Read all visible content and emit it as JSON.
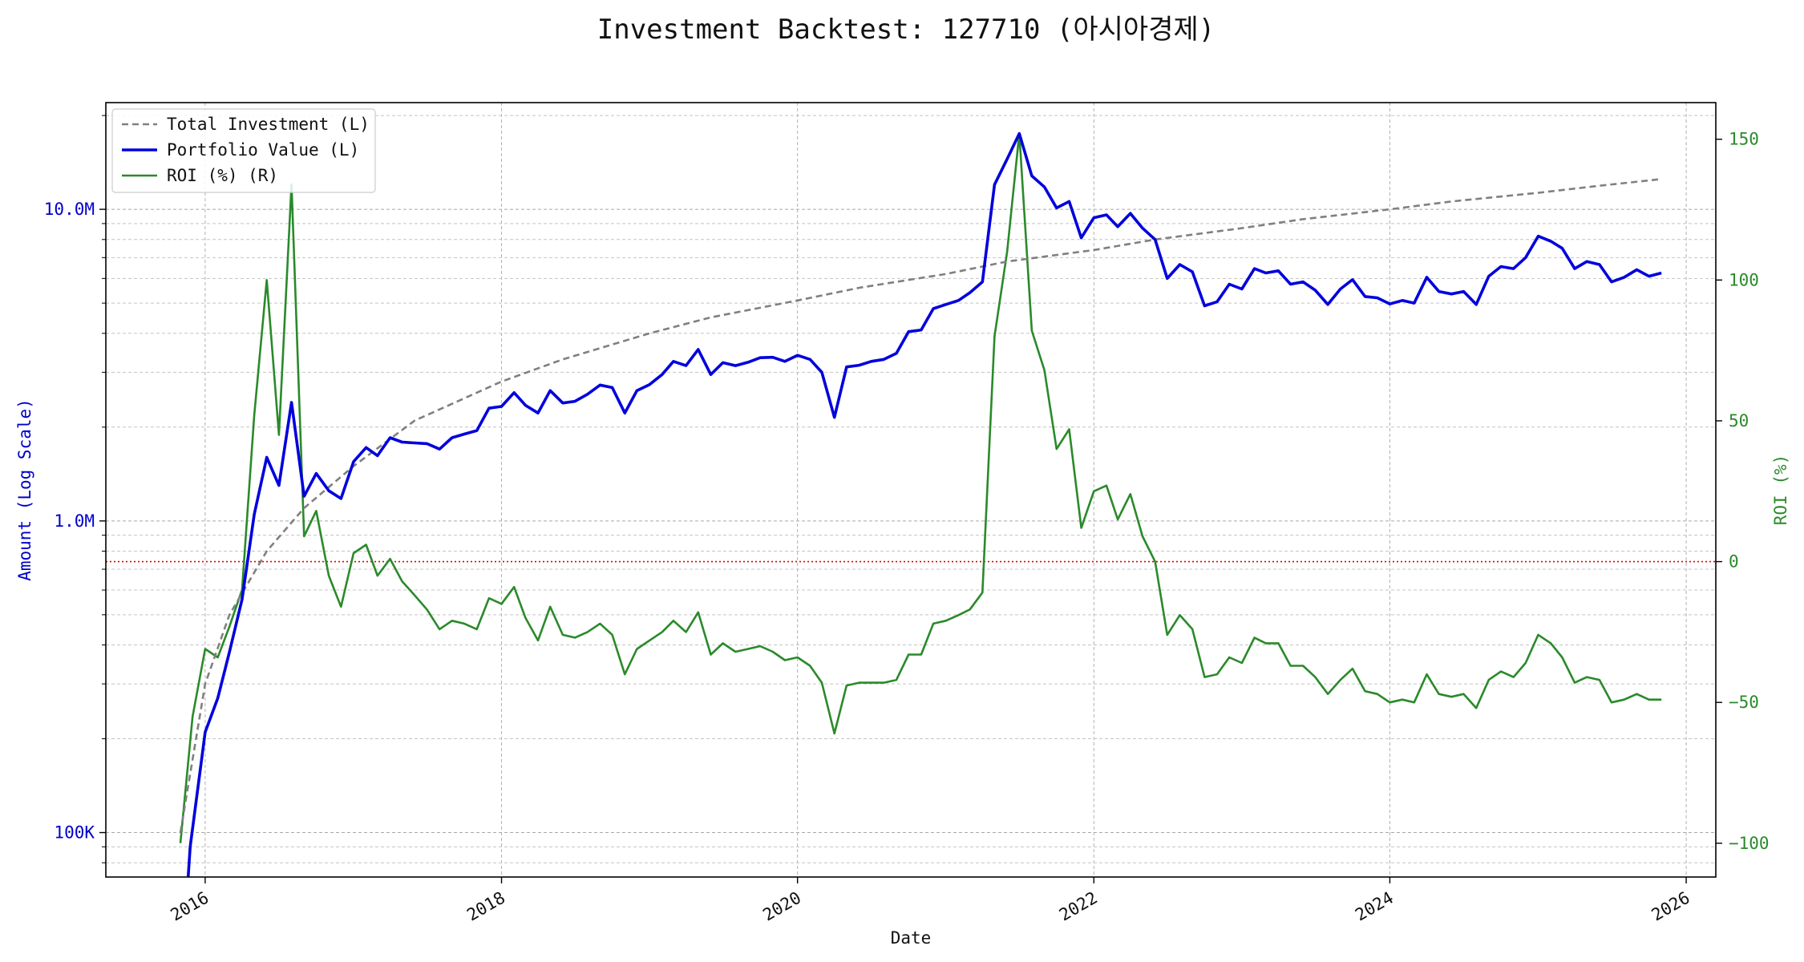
{
  "chart_data": {
    "type": "line",
    "title": "Investment Backtest: 127710 (아시아경제)",
    "xlabel": "Date",
    "ylabel_left": "Amount (Log Scale)",
    "ylabel_right": "ROI (%)",
    "yscale_left": "log",
    "ylim_left": [
      72000,
      22000000
    ],
    "ylim_right": [
      -112,
      163
    ],
    "xlim": [
      "2015-05-01",
      "2026-03-15"
    ],
    "x_ticks": [
      {
        "date": "2016-01-01",
        "label": "2016"
      },
      {
        "date": "2018-01-01",
        "label": "2018"
      },
      {
        "date": "2020-01-01",
        "label": "2020"
      },
      {
        "date": "2022-01-01",
        "label": "2022"
      },
      {
        "date": "2024-01-01",
        "label": "2024"
      },
      {
        "date": "2026-01-01",
        "label": "2026"
      }
    ],
    "y_left_ticks": [
      {
        "value": 100000,
        "label": "100K"
      },
      {
        "value": 1000000,
        "label": "1.0M"
      },
      {
        "value": 10000000,
        "label": "10.0M"
      }
    ],
    "y_right_ticks": [
      {
        "value": -100,
        "label": "−100"
      },
      {
        "value": -50,
        "label": "−50"
      },
      {
        "value": 0,
        "label": "0"
      },
      {
        "value": 50,
        "label": "50"
      },
      {
        "value": 100,
        "label": "100"
      },
      {
        "value": 150,
        "label": "150"
      }
    ],
    "reference_line_right": 0,
    "grid": true,
    "legend_position": "top-left",
    "colors": {
      "total_investment": "#808080",
      "portfolio_value": "#0000dd",
      "roi": "#2a8a2a",
      "zero_line": "#dd0000"
    },
    "series": [
      {
        "name": "Total Investment (L)",
        "axis": "left",
        "style": "dashed",
        "x": [
          "2015-11-01",
          "2016-01-01",
          "2016-03-01",
          "2016-06-01",
          "2016-09-01",
          "2017-01-01",
          "2017-06-01",
          "2018-01-01",
          "2018-06-01",
          "2019-01-01",
          "2019-06-01",
          "2020-01-01",
          "2020-06-01",
          "2021-01-01",
          "2021-06-01",
          "2022-01-01",
          "2022-06-01",
          "2023-01-01",
          "2023-06-01",
          "2024-01-01",
          "2024-06-01",
          "2025-01-01",
          "2025-06-01",
          "2025-11-01"
        ],
        "values": [
          100000,
          300000,
          500000,
          800000,
          1100000,
          1500000,
          2100000,
          2800000,
          3300000,
          4000000,
          4500000,
          5100000,
          5600000,
          6200000,
          6800000,
          7400000,
          8000000,
          8700000,
          9300000,
          10000000,
          10600000,
          11300000,
          11900000,
          12500000
        ]
      },
      {
        "name": "Portfolio Value (L)",
        "axis": "left",
        "style": "solid",
        "x": [
          "2015-11-20",
          "2015-11-25",
          "2016-01-01",
          "2016-02-01",
          "2016-03-01",
          "2016-04-01",
          "2016-05-01",
          "2016-06-01",
          "2016-07-01",
          "2016-08-01",
          "2016-09-01",
          "2016-10-01",
          "2016-11-01",
          "2016-12-01",
          "2017-01-01",
          "2017-02-01",
          "2017-03-01",
          "2017-04-01",
          "2017-05-01",
          "2017-06-01",
          "2017-07-01",
          "2017-08-01",
          "2017-09-01",
          "2017-10-01",
          "2017-11-01",
          "2017-12-01",
          "2018-01-01",
          "2018-02-01",
          "2018-03-01",
          "2018-04-01",
          "2018-05-01",
          "2018-06-01",
          "2018-07-01",
          "2018-08-01",
          "2018-09-01",
          "2018-10-01",
          "2018-11-01",
          "2018-12-01",
          "2019-01-01",
          "2019-02-01",
          "2019-03-01",
          "2019-04-01",
          "2019-05-01",
          "2019-06-01",
          "2019-07-01",
          "2019-08-01",
          "2019-09-01",
          "2019-10-01",
          "2019-11-01",
          "2019-12-01",
          "2020-01-01",
          "2020-02-01",
          "2020-03-01",
          "2020-04-01",
          "2020-05-01",
          "2020-06-01",
          "2020-07-01",
          "2020-08-01",
          "2020-09-01",
          "2020-10-01",
          "2020-11-01",
          "2020-12-01",
          "2021-01-01",
          "2021-02-01",
          "2021-03-01",
          "2021-04-01",
          "2021-05-01",
          "2021-06-01",
          "2021-07-01",
          "2021-08-01",
          "2021-09-01",
          "2021-10-01",
          "2021-11-01",
          "2021-12-01",
          "2022-01-01",
          "2022-02-01",
          "2022-03-01",
          "2022-04-01",
          "2022-05-01",
          "2022-06-01",
          "2022-07-01",
          "2022-08-01",
          "2022-09-01",
          "2022-10-01",
          "2022-11-01",
          "2022-12-01",
          "2023-01-01",
          "2023-02-01",
          "2023-03-01",
          "2023-04-01",
          "2023-05-01",
          "2023-06-01",
          "2023-07-01",
          "2023-08-01",
          "2023-09-01",
          "2023-10-01",
          "2023-11-01",
          "2023-12-01",
          "2024-01-01",
          "2024-02-01",
          "2024-03-01",
          "2024-04-01",
          "2024-05-01",
          "2024-06-01",
          "2024-07-01",
          "2024-08-01",
          "2024-09-01",
          "2024-10-01",
          "2024-11-01",
          "2024-12-01",
          "2025-01-01",
          "2025-02-01",
          "2025-03-01",
          "2025-04-01",
          "2025-05-01",
          "2025-06-01",
          "2025-07-01",
          "2025-08-01",
          "2025-09-01",
          "2025-10-01",
          "2025-11-01"
        ],
        "values": [
          72000,
          90000,
          210000,
          270000,
          380000,
          560000,
          1050000,
          1600000,
          1300000,
          2400000,
          1200000,
          1420000,
          1250000,
          1180000,
          1550000,
          1720000,
          1620000,
          1850000,
          1790000,
          1780000,
          1770000,
          1700000,
          1850000,
          1900000,
          1950000,
          2300000,
          2330000,
          2580000,
          2350000,
          2220000,
          2620000,
          2390000,
          2420000,
          2550000,
          2730000,
          2680000,
          2220000,
          2620000,
          2740000,
          2950000,
          3250000,
          3150000,
          3550000,
          2950000,
          3220000,
          3150000,
          3230000,
          3340000,
          3350000,
          3250000,
          3400000,
          3300000,
          3000000,
          2150000,
          3120000,
          3160000,
          3250000,
          3300000,
          3450000,
          4050000,
          4100000,
          4800000,
          4950000,
          5100000,
          5400000,
          5850000,
          12000000,
          14500000,
          17500000,
          12800000,
          11800000,
          10100000,
          10600000,
          8100000,
          9400000,
          9600000,
          8800000,
          9700000,
          8700000,
          8000000,
          6000000,
          6650000,
          6300000,
          4900000,
          5050000,
          5750000,
          5550000,
          6450000,
          6250000,
          6350000,
          5750000,
          5850000,
          5500000,
          4950000,
          5550000,
          5950000,
          5250000,
          5200000,
          4970000,
          5100000,
          5000000,
          6050000,
          5450000,
          5350000,
          5450000,
          4950000,
          6100000,
          6550000,
          6450000,
          7000000,
          8200000,
          7900000,
          7500000,
          6450000,
          6800000,
          6650000,
          5850000,
          6050000,
          6400000,
          6100000,
          6250000
        ]
      },
      {
        "name": "ROI (%) (R)",
        "axis": "right",
        "style": "solid",
        "x": [
          "2015-11-01",
          "2015-12-01",
          "2016-01-01",
          "2016-02-01",
          "2016-03-01",
          "2016-04-01",
          "2016-05-01",
          "2016-06-01",
          "2016-07-01",
          "2016-08-01",
          "2016-09-01",
          "2016-10-01",
          "2016-11-01",
          "2016-12-01",
          "2017-01-01",
          "2017-02-01",
          "2017-03-01",
          "2017-04-01",
          "2017-05-01",
          "2017-06-01",
          "2017-07-01",
          "2017-08-01",
          "2017-09-01",
          "2017-10-01",
          "2017-11-01",
          "2017-12-01",
          "2018-01-01",
          "2018-02-01",
          "2018-03-01",
          "2018-04-01",
          "2018-05-01",
          "2018-06-01",
          "2018-07-01",
          "2018-08-01",
          "2018-09-01",
          "2018-10-01",
          "2018-11-01",
          "2018-12-01",
          "2019-01-01",
          "2019-02-01",
          "2019-03-01",
          "2019-04-01",
          "2019-05-01",
          "2019-06-01",
          "2019-07-01",
          "2019-08-01",
          "2019-09-01",
          "2019-10-01",
          "2019-11-01",
          "2019-12-01",
          "2020-01-01",
          "2020-02-01",
          "2020-03-01",
          "2020-04-01",
          "2020-05-01",
          "2020-06-01",
          "2020-07-01",
          "2020-08-01",
          "2020-09-01",
          "2020-10-01",
          "2020-11-01",
          "2020-12-01",
          "2021-01-01",
          "2021-02-01",
          "2021-03-01",
          "2021-04-01",
          "2021-05-01",
          "2021-06-01",
          "2021-07-01",
          "2021-08-01",
          "2021-09-01",
          "2021-10-01",
          "2021-11-01",
          "2021-12-01",
          "2022-01-01",
          "2022-02-01",
          "2022-03-01",
          "2022-04-01",
          "2022-05-01",
          "2022-06-01",
          "2022-07-01",
          "2022-08-01",
          "2022-09-01",
          "2022-10-01",
          "2022-11-01",
          "2022-12-01",
          "2023-01-01",
          "2023-02-01",
          "2023-03-01",
          "2023-04-01",
          "2023-05-01",
          "2023-06-01",
          "2023-07-01",
          "2023-08-01",
          "2023-09-01",
          "2023-10-01",
          "2023-11-01",
          "2023-12-01",
          "2024-01-01",
          "2024-02-01",
          "2024-03-01",
          "2024-04-01",
          "2024-05-01",
          "2024-06-01",
          "2024-07-01",
          "2024-08-01",
          "2024-09-01",
          "2024-10-01",
          "2024-11-01",
          "2024-12-01",
          "2025-01-01",
          "2025-02-01",
          "2025-03-01",
          "2025-04-01",
          "2025-05-01",
          "2025-06-01",
          "2025-07-01",
          "2025-08-01",
          "2025-09-01",
          "2025-10-01",
          "2025-11-01"
        ],
        "values": [
          -100,
          -55,
          -31,
          -34,
          -23,
          -10,
          52,
          100,
          45,
          134,
          9,
          18,
          -5,
          -16,
          3,
          6,
          -5,
          1,
          -7,
          -12,
          -17,
          -24,
          -21,
          -22,
          -24,
          -13,
          -15,
          -9,
          -20,
          -28,
          -16,
          -26,
          -27,
          -25,
          -22,
          -26,
          -40,
          -31,
          -28,
          -25,
          -21,
          -25,
          -18,
          -33,
          -29,
          -32,
          -31,
          -30,
          -32,
          -35,
          -34,
          -37,
          -43,
          -61,
          -44,
          -43,
          -43,
          -43,
          -42,
          -33,
          -33,
          -22,
          -21,
          -19,
          -17,
          -11,
          80,
          110,
          152,
          82,
          68,
          40,
          47,
          12,
          25,
          27,
          15,
          24,
          9,
          0,
          -26,
          -19,
          -24,
          -41,
          -40,
          -34,
          -36,
          -27,
          -29,
          -29,
          -37,
          -37,
          -41,
          -47,
          -42,
          -38,
          -46,
          -47,
          -50,
          -49,
          -50,
          -40,
          -47,
          -48,
          -47,
          -52,
          -42,
          -39,
          -41,
          -36,
          -26,
          -29,
          -34,
          -43,
          -41,
          -42,
          -50,
          -49,
          -47,
          -49,
          -49
        ]
      }
    ]
  }
}
